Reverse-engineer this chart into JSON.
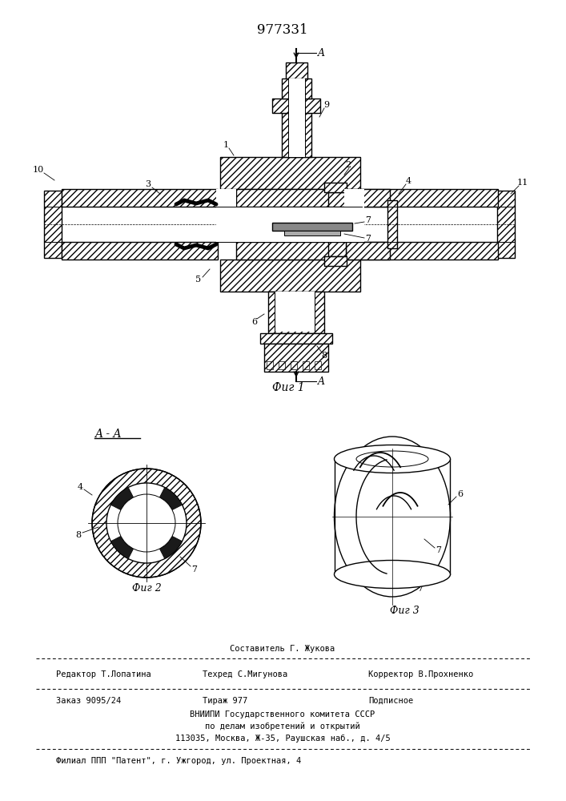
{
  "patent_number": "977331",
  "fig1_caption": "Фиг 1",
  "fig2_caption": "Фиг 2",
  "fig3_caption": "Фиг 3",
  "section_label": "A - A",
  "bg_color": "#ffffff",
  "line_color": "#000000",
  "footer_sostavitel": "Составитель Г. Жукова",
  "footer_redaktor": "Редактор Т.Лопатина",
  "footer_tehred": "Техред С.Мигунова",
  "footer_korrektor": "Корректор В.Прохненко",
  "footer_zakaz": "Заказ 9095/24",
  "footer_tirazh": "Тираж 977",
  "footer_podpisnoe": "Подписное",
  "footer_vnipi": "ВНИИПИ Государственного комитета СССР",
  "footer_po_delam": "по делам изобретений и открытий",
  "footer_address": "113035, Москва, Ж-35, Раушская наб., д. 4/5",
  "footer_filial": "Филиал ППП \"Патент\", г. Ужгород, ул. Проектная, 4"
}
